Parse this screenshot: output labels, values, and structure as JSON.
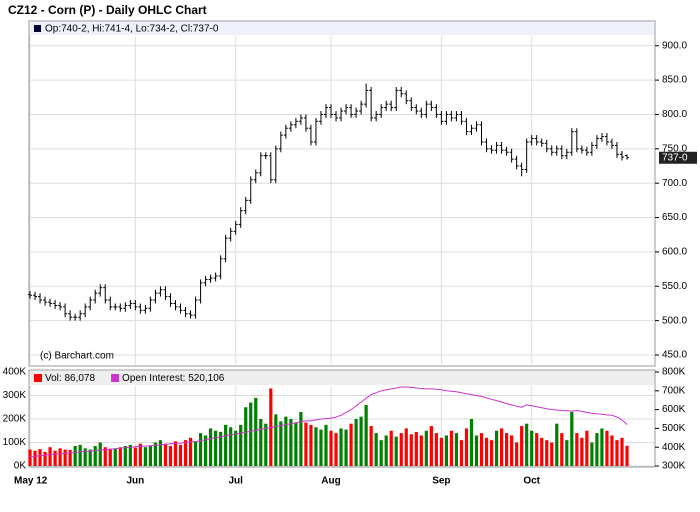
{
  "chart_data": [
    {
      "type": "ohlc",
      "title": "CZ12 - Corn (P) - Daily OHLC Chart",
      "ohlc_label": "Op:740-2, Hi:741-4, Lo:734-2, Cl:737-0",
      "watermark": "(c) Barchart.com",
      "last_label": "737-0",
      "color": "#000000",
      "open": [
        538,
        537,
        535,
        530,
        527,
        525,
        522,
        520,
        510,
        505,
        505,
        510,
        520,
        530,
        540,
        548,
        530,
        520,
        520,
        518,
        522,
        525,
        520,
        515,
        518,
        530,
        540,
        545,
        535,
        525,
        520,
        515,
        510,
        508,
        530,
        555,
        560,
        562,
        565,
        590,
        620,
        630,
        640,
        660,
        675,
        705,
        715,
        740,
        740,
        705,
        750,
        770,
        780,
        785,
        790,
        795,
        780,
        760,
        790,
        800,
        810,
        800,
        795,
        805,
        810,
        800,
        805,
        815,
        835,
        795,
        800,
        810,
        815,
        810,
        835,
        830,
        820,
        810,
        805,
        800,
        815,
        810,
        800,
        790,
        800,
        795,
        800,
        790,
        775,
        780,
        785,
        760,
        750,
        748,
        755,
        748,
        745,
        735,
        725,
        720,
        760,
        765,
        760,
        758,
        750,
        745,
        750,
        740,
        745,
        775,
        750,
        748,
        745,
        755,
        765,
        768,
        760,
        755,
        742,
        740.25
      ],
      "high": [
        543,
        542,
        540,
        535,
        532,
        530,
        527,
        525,
        515,
        510,
        515,
        525,
        535,
        545,
        553,
        553,
        535,
        525,
        525,
        527,
        530,
        530,
        525,
        523,
        535,
        545,
        550,
        550,
        540,
        530,
        525,
        520,
        515,
        535,
        560,
        565,
        567,
        570,
        595,
        625,
        635,
        645,
        665,
        680,
        710,
        720,
        745,
        745,
        745,
        755,
        775,
        785,
        790,
        795,
        800,
        800,
        785,
        795,
        805,
        815,
        815,
        805,
        810,
        815,
        815,
        810,
        820,
        845,
        840,
        805,
        815,
        820,
        820,
        840,
        840,
        835,
        825,
        815,
        810,
        820,
        820,
        815,
        805,
        805,
        805,
        805,
        805,
        795,
        785,
        790,
        790,
        765,
        755,
        760,
        760,
        753,
        750,
        740,
        730,
        765,
        770,
        770,
        765,
        763,
        755,
        755,
        755,
        750,
        780,
        780,
        755,
        753,
        760,
        770,
        773,
        773,
        765,
        760,
        747,
        741.5
      ],
      "low": [
        532,
        530,
        525,
        522,
        520,
        517,
        515,
        505,
        500,
        500,
        500,
        505,
        515,
        525,
        535,
        525,
        515,
        515,
        513,
        513,
        517,
        515,
        510,
        510,
        513,
        525,
        535,
        530,
        520,
        515,
        510,
        505,
        503,
        503,
        525,
        550,
        555,
        557,
        560,
        585,
        615,
        625,
        635,
        655,
        670,
        700,
        710,
        735,
        700,
        700,
        745,
        765,
        775,
        780,
        785,
        775,
        755,
        755,
        785,
        795,
        795,
        790,
        790,
        800,
        795,
        795,
        800,
        810,
        790,
        790,
        795,
        805,
        805,
        805,
        825,
        815,
        805,
        800,
        795,
        795,
        805,
        795,
        785,
        785,
        790,
        790,
        785,
        770,
        770,
        775,
        755,
        745,
        743,
        743,
        743,
        740,
        730,
        720,
        710,
        715,
        755,
        755,
        753,
        745,
        740,
        740,
        735,
        735,
        740,
        745,
        743,
        740,
        740,
        750,
        760,
        755,
        750,
        737,
        733,
        734.25
      ],
      "close": [
        537,
        535,
        530,
        527,
        525,
        522,
        520,
        510,
        505,
        505,
        510,
        520,
        530,
        540,
        548,
        530,
        520,
        520,
        518,
        522,
        525,
        520,
        515,
        518,
        530,
        540,
        545,
        535,
        525,
        520,
        515,
        510,
        508,
        530,
        555,
        560,
        562,
        565,
        590,
        620,
        630,
        640,
        660,
        675,
        705,
        715,
        740,
        740,
        705,
        750,
        770,
        780,
        785,
        790,
        795,
        780,
        760,
        790,
        800,
        810,
        800,
        795,
        805,
        810,
        800,
        805,
        815,
        835,
        795,
        800,
        810,
        815,
        810,
        835,
        830,
        820,
        810,
        805,
        800,
        815,
        810,
        800,
        790,
        800,
        795,
        800,
        790,
        775,
        780,
        785,
        760,
        750,
        748,
        755,
        748,
        745,
        735,
        725,
        720,
        760,
        765,
        760,
        758,
        750,
        745,
        750,
        740,
        745,
        775,
        750,
        748,
        745,
        755,
        765,
        768,
        760,
        755,
        742,
        738,
        737
      ],
      "ylim": [
        434,
        936
      ],
      "yticks": [
        {
          "value": 450,
          "label": "450.0"
        },
        {
          "value": 500,
          "label": "500.0"
        },
        {
          "value": 550,
          "label": "550.0"
        },
        {
          "value": 600,
          "label": "600.0"
        },
        {
          "value": 650,
          "label": "650.0"
        },
        {
          "value": 700,
          "label": "700.0"
        },
        {
          "value": 750,
          "label": "750.0"
        },
        {
          "value": 800,
          "label": "800.0"
        },
        {
          "value": 850,
          "label": "850.0"
        },
        {
          "value": 900,
          "label": "900.0"
        }
      ],
      "grid": true
    },
    {
      "type": "bar",
      "categories": [
        "May 12",
        null,
        null,
        null,
        null,
        null,
        null,
        null,
        null,
        null,
        null,
        null,
        null,
        null,
        null,
        null,
        null,
        null,
        null,
        null,
        null,
        "Jun",
        null,
        null,
        null,
        null,
        null,
        null,
        null,
        null,
        null,
        null,
        null,
        null,
        null,
        null,
        null,
        null,
        null,
        null,
        null,
        "Jul",
        null,
        null,
        null,
        null,
        null,
        null,
        null,
        null,
        null,
        null,
        null,
        null,
        null,
        null,
        null,
        null,
        null,
        null,
        "Aug",
        null,
        null,
        null,
        null,
        null,
        null,
        null,
        null,
        null,
        null,
        null,
        null,
        null,
        null,
        null,
        null,
        null,
        null,
        null,
        null,
        null,
        "Sep",
        null,
        null,
        null,
        null,
        null,
        null,
        null,
        null,
        null,
        null,
        null,
        null,
        null,
        null,
        null,
        null,
        null,
        "Oct",
        null,
        null,
        null,
        null,
        null,
        null,
        null,
        null,
        null,
        null,
        null,
        null,
        null,
        null,
        null,
        null,
        null,
        null,
        null
      ],
      "series": [
        {
          "name": "Vol: 86,078",
          "color": "#ff0000",
          "up_color": "#008000",
          "values": [
            70000,
            65000,
            72000,
            60000,
            80000,
            65000,
            75000,
            70000,
            68000,
            85000,
            90000,
            75000,
            70000,
            85000,
            100000,
            80000,
            70000,
            75000,
            80000,
            85000,
            90000,
            78000,
            95000,
            80000,
            85000,
            100000,
            110000,
            95000,
            85000,
            105000,
            90000,
            110000,
            120000,
            105000,
            140000,
            130000,
            160000,
            150000,
            145000,
            175000,
            165000,
            150000,
            175000,
            250000,
            270000,
            290000,
            200000,
            180000,
            330000,
            220000,
            190000,
            210000,
            200000,
            185000,
            230000,
            185000,
            175000,
            165000,
            155000,
            175000,
            150000,
            140000,
            160000,
            155000,
            180000,
            200000,
            210000,
            260000,
            170000,
            140000,
            110000,
            130000,
            150000,
            125000,
            140000,
            160000,
            135000,
            145000,
            130000,
            150000,
            170000,
            140000,
            120000,
            130000,
            150000,
            140000,
            110000,
            160000,
            200000,
            130000,
            140000,
            120000,
            110000,
            150000,
            160000,
            140000,
            130000,
            100000,
            170000,
            180000,
            150000,
            140000,
            120000,
            110000,
            100000,
            180000,
            140000,
            110000,
            230000,
            140000,
            120000,
            150000,
            100000,
            140000,
            160000,
            150000,
            130000,
            110000,
            120000,
            86078
          ]
        },
        {
          "name": "Open Interest: 520,106",
          "color": "#cc33cc",
          "axis": "y2",
          "values": [
            350000,
            352000,
            355000,
            357000,
            360000,
            362000,
            365000,
            368000,
            370000,
            372000,
            375000,
            378000,
            380000,
            382000,
            385000,
            387000,
            390000,
            392000,
            395000,
            397000,
            400000,
            402000,
            404000,
            406000,
            408000,
            410000,
            412000,
            415000,
            418000,
            420000,
            422000,
            425000,
            428000,
            430000,
            435000,
            440000,
            445000,
            450000,
            455000,
            460000,
            465000,
            470000,
            475000,
            480000,
            485000,
            490000,
            495000,
            500000,
            505000,
            510000,
            515000,
            520000,
            525000,
            530000,
            535000,
            540000,
            540000,
            545000,
            550000,
            552000,
            555000,
            560000,
            570000,
            585000,
            600000,
            620000,
            640000,
            660000,
            680000,
            690000,
            700000,
            705000,
            710000,
            715000,
            720000,
            720000,
            718000,
            715000,
            712000,
            710000,
            710000,
            708000,
            705000,
            700000,
            698000,
            695000,
            690000,
            685000,
            680000,
            675000,
            670000,
            662000,
            655000,
            648000,
            640000,
            632000,
            625000,
            618000,
            612000,
            625000,
            620000,
            615000,
            610000,
            605000,
            600000,
            598000,
            596000,
            594000,
            592000,
            595000,
            590000,
            585000,
            580000,
            578000,
            575000,
            572000,
            570000,
            560000,
            545000,
            520106
          ]
        }
      ],
      "ylim": [
        0,
        400000
      ],
      "yticks": [
        {
          "value": 0,
          "label": "0K"
        },
        {
          "value": 100000,
          "label": "100K"
        },
        {
          "value": 200000,
          "label": "200K"
        },
        {
          "value": 300000,
          "label": "300K"
        },
        {
          "value": 400000,
          "label": "400K"
        }
      ],
      "y2lim": [
        300000,
        800000
      ],
      "y2ticks": [
        {
          "value": 300000,
          "label": "300K"
        },
        {
          "value": 400000,
          "label": "400K"
        },
        {
          "value": 500000,
          "label": "500K"
        },
        {
          "value": 600000,
          "label": "600K"
        },
        {
          "value": 700000,
          "label": "700K"
        },
        {
          "value": 800000,
          "label": "800K"
        }
      ],
      "grid": true
    }
  ]
}
